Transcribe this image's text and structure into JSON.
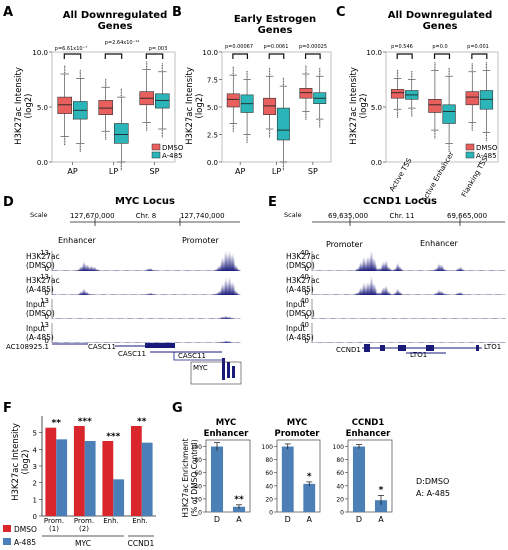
{
  "panels": {
    "A": {
      "letter": "A",
      "title_line1": "All Downregulated",
      "title_line2": "Genes",
      "ylabel_line1": "H3K27ac Intensity",
      "ylabel_line2": "(log2)",
      "categories": [
        "AP",
        "LP",
        "SP"
      ],
      "yticks": [
        "10.0",
        "5.0",
        "0.0"
      ],
      "pvals": [
        "p=6.61x10⁻⁷",
        "p=2.64x10⁻¹⁴",
        "p=.003"
      ],
      "legend": [
        "DMSO",
        "A-485"
      ]
    },
    "B": {
      "letter": "B",
      "title_line1": "Early Estrogen",
      "title_line2": "Genes",
      "ylabel_line1": "H3K27ac Intensity",
      "ylabel_line2": "(log2)",
      "categories": [
        "AP",
        "LP",
        "SP"
      ],
      "yticks": [
        "10.0",
        "7.5",
        "5.0",
        "2.5",
        "0.0"
      ],
      "pvals": [
        "p=0.00067",
        "p=0.0061",
        "p=0.00025"
      ]
    },
    "C": {
      "letter": "C",
      "title_line1": "All Downregulated",
      "title_line2": "Genes",
      "ylabel_line1": "H3K27ac Intensity",
      "ylabel_line2": "(log2)",
      "categories": [
        "Active TSS",
        "Active Enhancer",
        "Flanking TSS"
      ],
      "yticks": [
        "10.0",
        "5.0",
        "0.0"
      ],
      "pvals": [
        "p=0.546",
        "p=0.0",
        "p=0.001"
      ],
      "legend": [
        "DMSO",
        "A-485"
      ]
    },
    "D": {
      "letter": "D",
      "title": "MYC Locus",
      "scale": "Scale",
      "coord_left": "127,670,000",
      "chr": "Chr. 8",
      "coord_right": "127,740,000",
      "enhancer": "Enhancer",
      "promoter": "Promoter",
      "tracks": [
        {
          "l1": "H3K27ac",
          "l2": "(DMSO)",
          "max": "13",
          "min": "0"
        },
        {
          "l1": "H3K27ac",
          "l2": "(A-485)",
          "max": "13",
          "min": "0"
        },
        {
          "l1": "Input",
          "l2": "(DMSO)",
          "max": "13",
          "min": "0"
        },
        {
          "l1": "Input",
          "l2": "(A-485)",
          "max": "13",
          "min": "0"
        }
      ],
      "genes": [
        "AC108925.1",
        "CASC11",
        "CASC11",
        "CASC11",
        "MYC"
      ]
    },
    "E": {
      "letter": "E",
      "title": "CCND1 Locus",
      "scale": "Scale",
      "coord_left": "69,635,000",
      "chr": "Chr. 11",
      "coord_right": "69,665,000",
      "enhancer": "Enhancer",
      "promoter": "Promoter",
      "tracks": [
        {
          "l1": "H3K27ac",
          "l2": "(DMSO)",
          "max": "40",
          "min": "0"
        },
        {
          "l1": "H3K27ac",
          "l2": "(A-485)",
          "max": "40",
          "min": "0"
        },
        {
          "l1": "Input",
          "l2": "(DMSO)",
          "max": "40",
          "min": "0"
        },
        {
          "l1": "Input",
          "l2": "(A-485)",
          "max": "40",
          "min": "0"
        }
      ],
      "genes": [
        "CCND1",
        "LTO1",
        "LTO1"
      ]
    },
    "F": {
      "letter": "F",
      "ylabel_line1": "H3K27ac Intensity",
      "ylabel_line2": "(log2)",
      "groups": [
        {
          "l1": "Prom.",
          "l2": "(1)"
        },
        {
          "l1": "Prom.",
          "l2": "(2)"
        },
        {
          "l1": "Enh.",
          "l2": ""
        },
        {
          "l1": "Enh.",
          "l2": ""
        }
      ],
      "gene_labels": [
        "MYC",
        "CCND1"
      ],
      "stars": [
        "**",
        "***",
        "***",
        "**"
      ],
      "yticks": [
        "5",
        "4",
        "3",
        "2",
        "1",
        "0"
      ],
      "legend": [
        "DMSO",
        "A-485"
      ]
    },
    "G": {
      "letter": "G",
      "ylabel_line1": "H3K27ac Enrichment",
      "ylabel_line2": "(% of DMSO Control)",
      "subplots": [
        {
          "t1": "MYC",
          "t2": "Enhancer",
          "star": "**"
        },
        {
          "t1": "MYC",
          "t2": "Promoter",
          "star": "*"
        },
        {
          "t1": "CCND1",
          "t2": "Enhancer",
          "star": "*"
        }
      ],
      "xcats": [
        "D",
        "A"
      ],
      "yticks": [
        "100",
        "80",
        "60",
        "40",
        "20",
        "0"
      ],
      "key_line1": "D:DMSO",
      "key_line2": "A: A-485"
    }
  },
  "colors": {
    "dmso": "#e8605e",
    "a485": "#2bb5b8",
    "bar_dmso": "#d9262c",
    "bar_a485": "#4a7fb8",
    "bar_g": "#4b7fb5",
    "track": "#1a1a7a"
  },
  "chart_data": [
    {
      "type": "box",
      "panel": "A",
      "categories": [
        "AP",
        "LP",
        "SP"
      ],
      "ylim": [
        0,
        10
      ],
      "series": [
        {
          "name": "DMSO",
          "median": [
            5.2,
            4.9,
            5.8
          ],
          "q1": [
            4.4,
            4.3,
            5.2
          ],
          "q3": [
            5.9,
            5.6,
            6.4
          ],
          "whisker_low": [
            2.3,
            2.8,
            3.6
          ],
          "whisker_high": [
            8.0,
            6.8,
            8.4
          ]
        },
        {
          "name": "A-485",
          "median": [
            4.7,
            2.5,
            5.6
          ],
          "q1": [
            3.9,
            1.7,
            4.9
          ],
          "q3": [
            5.5,
            3.5,
            6.2
          ],
          "whisker_low": [
            1.7,
            0.0,
            3.0
          ],
          "whisker_high": [
            7.6,
            5.9,
            8.2
          ]
        }
      ]
    },
    {
      "type": "box",
      "panel": "B",
      "categories": [
        "AP",
        "LP",
        "SP"
      ],
      "ylim": [
        0,
        10
      ],
      "series": [
        {
          "median": [
            5.7,
            5.1,
            6.3
          ],
          "q1": [
            5.0,
            4.3,
            5.8
          ],
          "q3": [
            6.2,
            5.8,
            6.7
          ],
          "whisker_low": [
            3.5,
            3.0,
            4.6
          ],
          "whisker_high": [
            7.9,
            7.8,
            8.0
          ]
        },
        {
          "median": [
            5.3,
            2.9,
            5.8
          ],
          "q1": [
            4.5,
            2.0,
            5.3
          ],
          "q3": [
            6.1,
            4.9,
            6.3
          ],
          "whisker_low": [
            2.5,
            0.0,
            3.9
          ],
          "whisker_high": [
            7.5,
            6.9,
            7.8
          ]
        }
      ]
    },
    {
      "type": "box",
      "panel": "C",
      "categories": [
        "Active TSS",
        "Active Enhancer",
        "Flanking TSS"
      ],
      "ylim": [
        0,
        10
      ],
      "series": [
        {
          "name": "DMSO",
          "median": [
            6.3,
            5.2,
            5.9
          ],
          "q1": [
            5.8,
            4.5,
            5.2
          ],
          "q3": [
            6.6,
            5.7,
            6.4
          ],
          "whisker_low": [
            4.8,
            2.9,
            3.6
          ],
          "whisker_high": [
            7.6,
            8.3,
            8.2
          ]
        },
        {
          "name": "A-485",
          "median": [
            6.1,
            4.6,
            5.7
          ],
          "q1": [
            5.7,
            3.5,
            4.8
          ],
          "q3": [
            6.5,
            5.2,
            6.5
          ],
          "whisker_low": [
            4.9,
            1.7,
            2.7
          ],
          "whisker_high": [
            7.5,
            7.8,
            8.3
          ]
        }
      ]
    },
    {
      "type": "bar",
      "panel": "F",
      "categories": [
        "Prom. (1)",
        "Prom. (2)",
        "Enh.",
        "Enh."
      ],
      "ylim": [
        0,
        6
      ],
      "series": [
        {
          "name": "DMSO",
          "values": [
            5.3,
            5.4,
            4.5,
            5.4
          ]
        },
        {
          "name": "A-485",
          "values": [
            4.6,
            4.5,
            2.2,
            4.4
          ]
        }
      ]
    },
    {
      "type": "bar",
      "panel": "G",
      "ylim": [
        0,
        110
      ],
      "subplots": [
        {
          "categories": [
            "D",
            "A"
          ],
          "values": [
            100,
            8
          ],
          "errors": [
            6,
            3
          ]
        },
        {
          "categories": [
            "D",
            "A"
          ],
          "values": [
            100,
            43
          ],
          "errors": [
            4,
            3
          ]
        },
        {
          "categories": [
            "D",
            "A"
          ],
          "values": [
            100,
            18
          ],
          "errors": [
            3,
            7
          ]
        }
      ]
    }
  ]
}
